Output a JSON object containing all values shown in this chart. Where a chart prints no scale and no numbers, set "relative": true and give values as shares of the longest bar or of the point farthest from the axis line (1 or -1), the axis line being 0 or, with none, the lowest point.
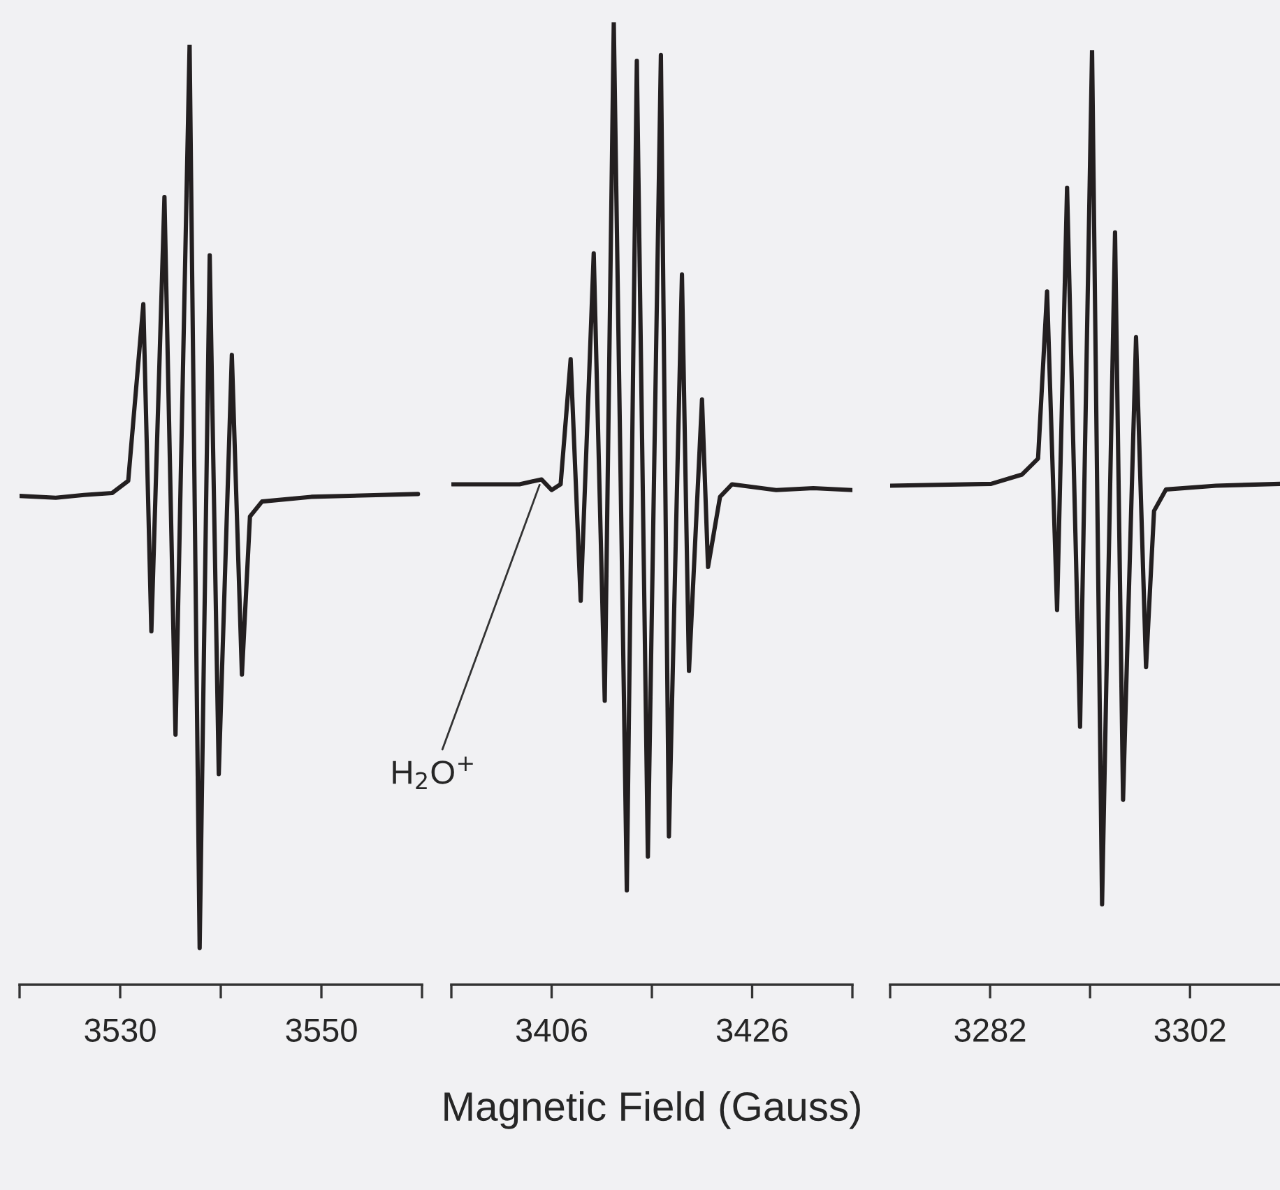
{
  "chart_data": [
    {
      "type": "line",
      "relative": true,
      "tick_labels": "x",
      "xlim": [
        3520,
        3560
      ],
      "xticks": [
        {
          "value": 3520,
          "label": null
        },
        3530,
        {
          "value": 3540,
          "label": null
        },
        3550,
        {
          "value": 3560,
          "label": null
        }
      ],
      "x": [
        3520,
        3523.6,
        3526.4,
        3529.2,
        3530.8,
        3532.3,
        3533.1,
        3534.4,
        3535.5,
        3536.9,
        3537.9,
        3538.9,
        3539.8,
        3541.1,
        3542.1,
        3542.9,
        3544.1,
        3549.0,
        3559.6
      ],
      "series": [
        {
          "color": "#231f20",
          "values": [
            0.52,
            0.518,
            0.521,
            0.523,
            0.536,
            0.724,
            0.376,
            0.838,
            0.266,
            1.0,
            0.039,
            0.776,
            0.224,
            0.67,
            0.33,
            0.498,
            0.514,
            0.519,
            0.522
          ]
        }
      ]
    },
    {
      "type": "line",
      "relative": true,
      "tick_labels": "x",
      "xlim": [
        3396,
        3436
      ],
      "xlabel": "Magnetic Field (Gauss)",
      "xticks": [
        {
          "value": 3396,
          "label": null
        },
        3406,
        {
          "value": 3416,
          "label": null
        },
        3426,
        {
          "value": 3436,
          "label": null
        }
      ],
      "x": [
        3396.1,
        3402.8,
        3405.0,
        3406.0,
        3406.9,
        3407.9,
        3408.9,
        3410.2,
        3411.3,
        3412.2,
        3413.5,
        3414.5,
        3415.6,
        3416.9,
        3417.7,
        3419.0,
        3419.7,
        3421.0,
        3421.6,
        3422.8,
        3424.0,
        3428.4,
        3432.1,
        3436.0
      ],
      "series": [
        {
          "color": "#231f20",
          "values": [
            0.52,
            0.52,
            0.525,
            0.514,
            0.52,
            0.65,
            0.399,
            0.76,
            0.295,
            1.0,
            0.098,
            0.96,
            0.133,
            0.966,
            0.154,
            0.738,
            0.326,
            0.608,
            0.434,
            0.507,
            0.52,
            0.514,
            0.516,
            0.514
          ]
        }
      ],
      "annotations": [
        {
          "text": "H$_{2}$O$^{+}$",
          "x": 3405.0,
          "y": 0.525
        }
      ]
    },
    {
      "type": "line",
      "relative": true,
      "tick_labels": "x",
      "xlim": [
        3272,
        3311
      ],
      "xticks": [
        {
          "value": 3272,
          "label": null
        },
        3282,
        {
          "value": 3292,
          "label": null
        },
        3302
      ],
      "x": [
        3272.0,
        3282.1,
        3285.2,
        3286.8,
        3287.7,
        3288.7,
        3289.7,
        3291.0,
        3292.2,
        3293.2,
        3294.5,
        3295.3,
        3296.6,
        3297.6,
        3298.4,
        3299.6,
        3304.6,
        3311.0
      ],
      "series": [
        {
          "color": "#231f20",
          "values": [
            0.534,
            0.536,
            0.546,
            0.563,
            0.742,
            0.401,
            0.853,
            0.276,
            1.0,
            0.086,
            0.805,
            0.198,
            0.693,
            0.34,
            0.507,
            0.53,
            0.534,
            0.536
          ]
        }
      ]
    }
  ]
}
